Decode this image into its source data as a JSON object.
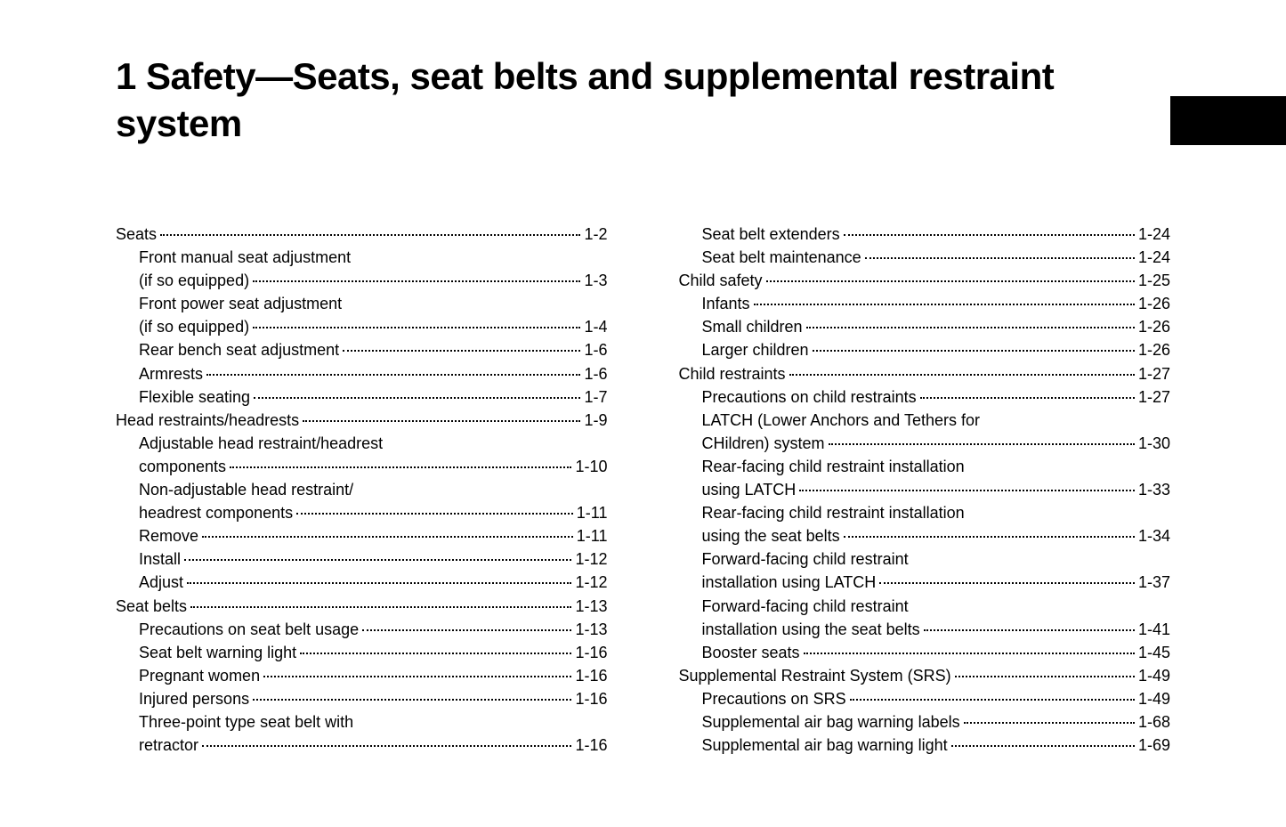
{
  "title": "1  Safety—Seats, seat belts and supplemental restraint system",
  "leftColumn": [
    {
      "label": "Seats",
      "page": "1-2",
      "level": 0
    },
    {
      "label": "Front manual seat adjustment (if so equipped)",
      "page": "1-3",
      "level": 1,
      "wrap": true,
      "line1": "Front manual seat adjustment",
      "line2": "(if so equipped)"
    },
    {
      "label": "Front power seat adjustment (if so equipped)",
      "page": "1-4",
      "level": 1,
      "wrap": true,
      "line1": "Front power seat adjustment",
      "line2": "(if so equipped)"
    },
    {
      "label": "Rear bench seat adjustment",
      "page": "1-6",
      "level": 1
    },
    {
      "label": "Armrests",
      "page": "1-6",
      "level": 1
    },
    {
      "label": "Flexible seating",
      "page": "1-7",
      "level": 1
    },
    {
      "label": "Head restraints/headrests",
      "page": "1-9",
      "level": 0
    },
    {
      "label": "Adjustable head restraint/headrest components",
      "page": "1-10",
      "level": 1,
      "wrap": true,
      "line1": "Adjustable head restraint/headrest",
      "line2": "components"
    },
    {
      "label": "Non-adjustable head restraint/ headrest components",
      "page": "1-11",
      "level": 1,
      "wrap": true,
      "line1": "Non-adjustable head restraint/",
      "line2": "headrest components"
    },
    {
      "label": "Remove",
      "page": "1-11",
      "level": 1
    },
    {
      "label": "Install",
      "page": "1-12",
      "level": 1
    },
    {
      "label": "Adjust",
      "page": "1-12",
      "level": 1
    },
    {
      "label": "Seat belts",
      "page": "1-13",
      "level": 0
    },
    {
      "label": "Precautions on seat belt usage",
      "page": "1-13",
      "level": 1
    },
    {
      "label": "Seat belt warning light",
      "page": "1-16",
      "level": 1
    },
    {
      "label": "Pregnant women",
      "page": "1-16",
      "level": 1
    },
    {
      "label": "Injured persons",
      "page": "1-16",
      "level": 1
    },
    {
      "label": "Three-point type seat belt with retractor",
      "page": "1-16",
      "level": 1,
      "wrap": true,
      "line1": "Three-point type seat belt with",
      "line2": "retractor"
    }
  ],
  "rightColumn": [
    {
      "label": "Seat belt extenders",
      "page": "1-24",
      "level": 1
    },
    {
      "label": "Seat belt maintenance",
      "page": "1-24",
      "level": 1
    },
    {
      "label": "Child safety",
      "page": "1-25",
      "level": 0
    },
    {
      "label": "Infants",
      "page": "1-26",
      "level": 1
    },
    {
      "label": "Small children",
      "page": "1-26",
      "level": 1
    },
    {
      "label": "Larger children",
      "page": "1-26",
      "level": 1
    },
    {
      "label": "Child restraints",
      "page": "1-27",
      "level": 0
    },
    {
      "label": "Precautions on child restraints",
      "page": "1-27",
      "level": 1
    },
    {
      "label": "LATCH (Lower Anchors and Tethers for CHildren) system",
      "page": "1-30",
      "level": 1,
      "wrap": true,
      "line1": "LATCH (Lower Anchors and Tethers for",
      "line2": "CHildren) system"
    },
    {
      "label": "Rear-facing child restraint installation using LATCH",
      "page": "1-33",
      "level": 1,
      "wrap": true,
      "line1": "Rear-facing child restraint installation",
      "line2": "using LATCH"
    },
    {
      "label": "Rear-facing child restraint installation using the seat belts",
      "page": "1-34",
      "level": 1,
      "wrap": true,
      "line1": "Rear-facing child restraint installation",
      "line2": "using the seat belts"
    },
    {
      "label": "Forward-facing child restraint installation using LATCH",
      "page": "1-37",
      "level": 1,
      "wrap": true,
      "line1": "Forward-facing child restraint",
      "line2": "installation using LATCH"
    },
    {
      "label": "Forward-facing child restraint installation using the seat belts",
      "page": "1-41",
      "level": 1,
      "wrap": true,
      "line1": "Forward-facing child restraint",
      "line2": "installation using the seat belts"
    },
    {
      "label": "Booster seats",
      "page": "1-45",
      "level": 1
    },
    {
      "label": "Supplemental Restraint System (SRS)",
      "page": "1-49",
      "level": 0
    },
    {
      "label": "Precautions on SRS",
      "page": "1-49",
      "level": 1
    },
    {
      "label": "Supplemental air bag warning labels",
      "page": "1-68",
      "level": 1
    },
    {
      "label": "Supplemental air bag warning light",
      "page": "1-69",
      "level": 1
    }
  ]
}
